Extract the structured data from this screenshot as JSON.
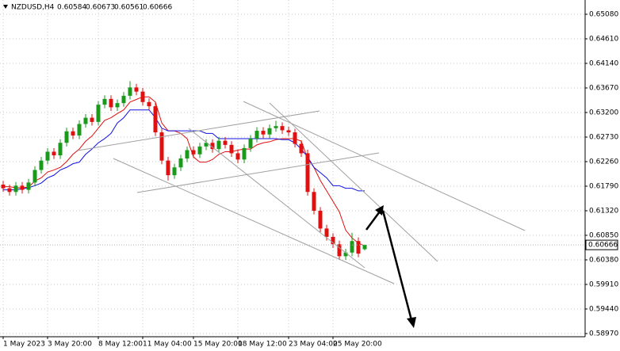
{
  "chart_data": {
    "type": "candlestick",
    "symbol": "NZDUSD,H4",
    "categories": [
      "1 May 2023",
      null,
      null,
      null,
      null,
      null,
      null,
      "3 May 20:00",
      null,
      null,
      null,
      null,
      null,
      null,
      null,
      "8 May 12:00",
      null,
      null,
      null,
      null,
      null,
      null,
      "11 May 04:00",
      null,
      null,
      null,
      null,
      null,
      null,
      null,
      "15 May 20:00",
      null,
      null,
      null,
      null,
      null,
      null,
      "18 May 12:00",
      null,
      null,
      null,
      null,
      null,
      null,
      null,
      "23 May 04:00",
      null,
      null,
      null,
      null,
      null,
      null,
      "25 May 20:00",
      null,
      null,
      null,
      null,
      null
    ],
    "open": [
      0.6182,
      0.6175,
      0.6168,
      0.618,
      0.6172,
      0.6186,
      0.621,
      0.6228,
      0.6245,
      0.6238,
      0.6262,
      0.6284,
      0.6276,
      0.6298,
      0.631,
      0.6302,
      0.6335,
      0.6346,
      0.633,
      0.6338,
      0.6352,
      0.6368,
      0.636,
      0.634,
      0.6332,
      0.6282,
      0.6228,
      0.62,
      0.6215,
      0.6232,
      0.6248,
      0.624,
      0.6255,
      0.6262,
      0.625,
      0.6266,
      0.6258,
      0.6242,
      0.623,
      0.6252,
      0.627,
      0.6285,
      0.6278,
      0.629,
      0.6294,
      0.6286,
      0.6282,
      0.626,
      0.6242,
      0.6168,
      0.6132,
      0.6098,
      0.6082,
      0.6068,
      0.6045,
      0.6052,
      0.6074,
      0.60584
    ],
    "high": [
      0.6189,
      0.6182,
      0.6187,
      0.6187,
      0.6193,
      0.6217,
      0.6235,
      0.6252,
      0.6252,
      0.6269,
      0.6291,
      0.6291,
      0.6305,
      0.6317,
      0.6317,
      0.6342,
      0.6353,
      0.6353,
      0.6345,
      0.6359,
      0.638,
      0.6375,
      0.6367,
      0.6347,
      0.6339,
      0.6289,
      0.6235,
      0.6222,
      0.6239,
      0.6255,
      0.6255,
      0.6262,
      0.6269,
      0.6269,
      0.6273,
      0.6273,
      0.6265,
      0.6249,
      0.6259,
      0.6277,
      0.6292,
      0.6292,
      0.6297,
      0.6304,
      0.6301,
      0.6293,
      0.6289,
      0.6267,
      0.6249,
      0.6175,
      0.6139,
      0.6105,
      0.6089,
      0.6075,
      0.6059,
      0.609,
      0.6081,
      0.60673
    ],
    "low": [
      0.6168,
      0.6161,
      0.6161,
      0.6165,
      0.6165,
      0.6179,
      0.6203,
      0.6221,
      0.6231,
      0.6231,
      0.6255,
      0.6269,
      0.6269,
      0.6291,
      0.6295,
      0.6295,
      0.6328,
      0.6323,
      0.6323,
      0.6331,
      0.6345,
      0.6353,
      0.6333,
      0.6325,
      0.6275,
      0.6221,
      0.619,
      0.6193,
      0.6208,
      0.6225,
      0.6233,
      0.6233,
      0.6248,
      0.6243,
      0.6243,
      0.6251,
      0.6235,
      0.6223,
      0.6223,
      0.6245,
      0.6263,
      0.6271,
      0.6271,
      0.6283,
      0.6279,
      0.6275,
      0.6253,
      0.6235,
      0.6161,
      0.6125,
      0.6091,
      0.6075,
      0.6061,
      0.6038,
      0.6038,
      0.6045,
      0.6043,
      0.60561
    ],
    "close": [
      0.6175,
      0.6168,
      0.618,
      0.6172,
      0.6186,
      0.621,
      0.6228,
      0.6245,
      0.6238,
      0.6262,
      0.6284,
      0.6276,
      0.6298,
      0.631,
      0.6302,
      0.6335,
      0.6346,
      0.633,
      0.6338,
      0.6352,
      0.6368,
      0.636,
      0.634,
      0.6332,
      0.6282,
      0.6228,
      0.62,
      0.6215,
      0.6232,
      0.6248,
      0.624,
      0.6255,
      0.6262,
      0.625,
      0.6266,
      0.6258,
      0.6242,
      0.623,
      0.6252,
      0.627,
      0.6285,
      0.6278,
      0.629,
      0.6294,
      0.6286,
      0.6282,
      0.626,
      0.6242,
      0.6168,
      0.6132,
      0.6098,
      0.6082,
      0.6068,
      0.6045,
      0.6052,
      0.6074,
      0.605,
      0.60666
    ],
    "up_color": "#1a9a1a",
    "down_color": "#e01010",
    "lines": [
      {
        "color": "#e01010",
        "values": [
          0.6178,
          0.6178,
          0.6176,
          0.6176,
          0.6177,
          0.6189,
          0.6195,
          0.6206,
          0.621,
          0.6215,
          0.6226,
          0.624,
          0.625,
          0.6265,
          0.6275,
          0.629,
          0.6305,
          0.631,
          0.6318,
          0.6325,
          0.634,
          0.6345,
          0.635,
          0.635,
          0.634,
          0.63,
          0.6285,
          0.6285,
          0.628,
          0.627,
          0.6235,
          0.6225,
          0.6225,
          0.623,
          0.624,
          0.6245,
          0.6245,
          0.6248,
          0.625,
          0.625,
          0.6258,
          0.6262,
          0.6264,
          0.6268,
          0.627,
          0.627,
          0.627,
          0.6265,
          0.6232,
          0.6215,
          0.619,
          0.617,
          0.615,
          0.613,
          0.6095,
          0.608,
          0.607,
          0.6065
        ]
      },
      {
        "color": "#1010e0",
        "values": [
          0.6172,
          0.6172,
          0.6172,
          0.6174,
          0.6176,
          0.618,
          0.6185,
          0.6195,
          0.62,
          0.621,
          0.6215,
          0.6222,
          0.6225,
          0.624,
          0.625,
          0.6262,
          0.627,
          0.628,
          0.63,
          0.631,
          0.6325,
          0.6325,
          0.6325,
          0.6325,
          0.631,
          0.629,
          0.6285,
          0.6285,
          0.6285,
          0.6285,
          0.6285,
          0.6285,
          0.628,
          0.628,
          0.627,
          0.627,
          0.627,
          0.627,
          0.627,
          0.627,
          0.627,
          0.627,
          0.627,
          0.627,
          0.6268,
          0.6268,
          0.6262,
          0.625,
          0.6235,
          0.6215,
          0.6205,
          0.6195,
          0.618,
          0.618,
          0.6175,
          0.6175,
          0.617,
          0.617
        ]
      }
    ],
    "ylim": [
      0.58909,
      0.65353
    ],
    "yticks": [
      {
        "value": 0.6508,
        "label": "0.65080"
      },
      {
        "value": 0.6461,
        "label": "0.64610"
      },
      {
        "value": 0.6414,
        "label": "0.64140"
      },
      {
        "value": 0.6367,
        "label": "0.63670"
      },
      {
        "value": 0.632,
        "label": "0.63200"
      },
      {
        "value": 0.6273,
        "label": "0.62730"
      },
      {
        "value": 0.6226,
        "label": "0.62260"
      },
      {
        "value": 0.6179,
        "label": "0.61790"
      },
      {
        "value": 0.6132,
        "label": "0.61320"
      },
      {
        "value": 0.6085,
        "label": "0.60850"
      },
      {
        "value": 0.6038,
        "label": "0.60380"
      },
      {
        "value": 0.5991,
        "label": "0.59910"
      },
      {
        "value": 0.5944,
        "label": "0.59440"
      },
      {
        "value": 0.5897,
        "label": "0.58970"
      }
    ],
    "grid": true
  }
}
